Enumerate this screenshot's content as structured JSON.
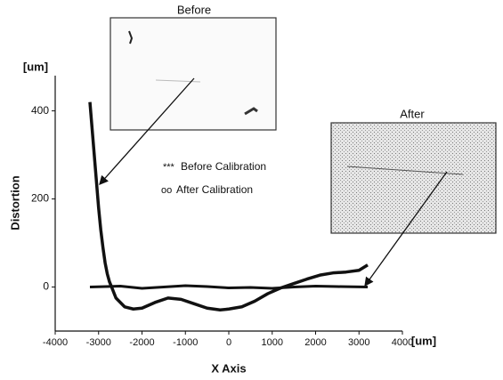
{
  "chart_data": {
    "type": "line",
    "y_label": "Distortion",
    "x_label": "X Axis",
    "y_unit": "[um]",
    "x_unit": "[um]",
    "annotations": [
      "Before",
      "After"
    ],
    "xlim": [
      -4000,
      4000
    ],
    "xticks": [
      -4000,
      -3000,
      -2000,
      -1000,
      0,
      1000,
      2000,
      3000,
      4000
    ],
    "ylim": [
      -100,
      480
    ],
    "yticks": [
      0,
      200,
      400
    ],
    "grid": false,
    "series": [
      {
        "name": "Before Calibration",
        "marker": "***",
        "color": "#111111",
        "x": [
          -3200,
          -3150,
          -3100,
          -3050,
          -3000,
          -2950,
          -2900,
          -2850,
          -2800,
          -2750,
          -2700,
          -2600,
          -2400,
          -2200,
          -2000,
          -1700,
          -1400,
          -1100,
          -800,
          -500,
          -200,
          0,
          300,
          600,
          900,
          1200,
          1500,
          1800,
          2100,
          2400,
          2700,
          3000,
          3200
        ],
        "values": [
          420,
          360,
          300,
          240,
          180,
          130,
          90,
          55,
          30,
          12,
          0,
          -25,
          -45,
          -50,
          -48,
          -35,
          -25,
          -28,
          -38,
          -48,
          -52,
          -50,
          -45,
          -32,
          -15,
          -2,
          8,
          18,
          27,
          32,
          34,
          38,
          50
        ]
      },
      {
        "name": "After Calibration",
        "marker": "oo",
        "color": "#111111",
        "x": [
          -3200,
          -2500,
          -2000,
          -1500,
          -1000,
          -500,
          0,
          500,
          1000,
          1500,
          2000,
          2500,
          3200
        ],
        "values": [
          0,
          2,
          -3,
          0,
          3,
          1,
          -2,
          -1,
          -3,
          0,
          2,
          1,
          0
        ]
      }
    ]
  }
}
